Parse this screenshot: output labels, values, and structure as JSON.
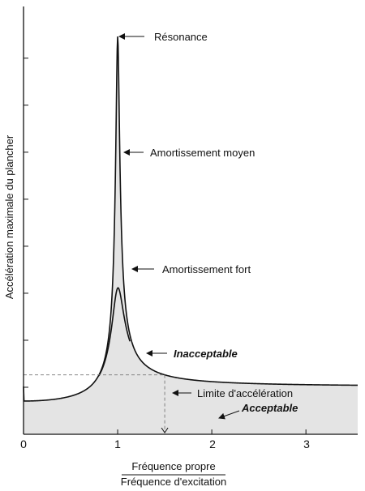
{
  "chart_data": {
    "type": "line",
    "title": "",
    "ylabel": "Accélération maximale du plancher",
    "xlabel_numerator": "Fréquence propre",
    "xlabel_denominator": "Fréquence d'excitation",
    "xlim": [
      0,
      3.55
    ],
    "x_ticks": [
      "0",
      "1",
      "2",
      "3"
    ],
    "y_ticks_count": 8,
    "grid": false,
    "series": [
      {
        "name": "Amortissement moyen",
        "zeta": 0.02
      },
      {
        "name": "Amortissement fort",
        "zeta": 0.065
      }
    ],
    "acceleration_limit": {
      "label": "Limite d'accélération",
      "x_intersection": 1.5
    },
    "annotations": {
      "resonance": "Résonance",
      "moderate": "Amortissement moyen",
      "strong": "Amortissement fort",
      "unacceptable": "Inacceptable",
      "limit": "Limite d'accélération",
      "acceptable": "Acceptable"
    },
    "colors": {
      "fill": "#e4e4e4",
      "line": "#111111",
      "dashed": "#777777"
    }
  }
}
